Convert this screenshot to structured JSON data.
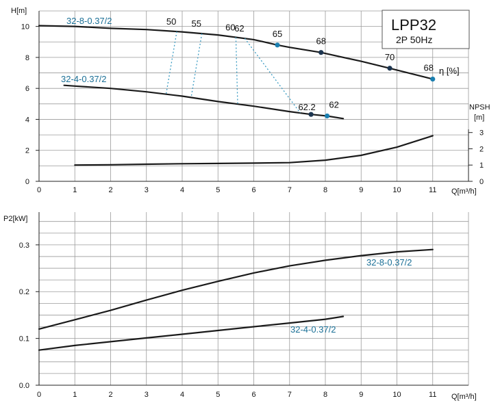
{
  "chart_data": [
    {
      "type": "line",
      "title": "LPP32",
      "subtitle": "2P  50Hz",
      "ylabel": "H[m]",
      "xlabel": "Q[m³/h]",
      "xlim": [
        0,
        12
      ],
      "ylim": [
        0,
        11
      ],
      "x_ticks": [
        "0",
        "1",
        "2",
        "3",
        "4",
        "5",
        "6",
        "7",
        "8",
        "9",
        "10",
        "11"
      ],
      "y_ticks": [
        "0",
        "2",
        "4",
        "6",
        "8",
        "10"
      ],
      "grid": true,
      "series": [
        {
          "name": "32-8-0.37/2",
          "x": [
            0,
            1,
            2,
            3,
            4,
            5,
            6,
            6.66,
            7,
            7.88,
            9,
            9.8,
            11
          ],
          "y": [
            10.05,
            10.0,
            9.88,
            9.8,
            9.65,
            9.45,
            9.15,
            8.8,
            8.65,
            8.32,
            7.75,
            7.3,
            6.6
          ]
        },
        {
          "name": "32-4-0.37/2",
          "x": [
            0.7,
            1,
            2,
            3,
            4,
            5,
            6,
            7,
            7.6,
            8.05,
            8.5
          ],
          "y": [
            6.2,
            6.15,
            6.0,
            5.78,
            5.5,
            5.15,
            4.85,
            4.5,
            4.32,
            4.22,
            4.05
          ]
        }
      ],
      "npsh": {
        "label": "NPSH",
        "unit": "[m]",
        "ticks": [
          "0",
          "1",
          "2",
          "3"
        ],
        "x": [
          1,
          2,
          3,
          4,
          5,
          6,
          7,
          8,
          9,
          10,
          11
        ],
        "y": [
          1.0,
          1.02,
          1.05,
          1.08,
          1.1,
          1.12,
          1.15,
          1.3,
          1.6,
          2.1,
          2.8
        ]
      },
      "efficiency": {
        "label": "η [%]",
        "curve_points": [
          {
            "series": "32-8-0.37/2",
            "x": 6.66,
            "value": "65"
          },
          {
            "series": "32-8-0.37/2",
            "x": 7.88,
            "value": "68"
          },
          {
            "series": "32-8-0.37/2",
            "x": 9.8,
            "value": "70"
          },
          {
            "series": "32-8-0.37/2",
            "x": 11,
            "value": "68"
          },
          {
            "series": "32-4-0.37/2",
            "x": 7.6,
            "value": "62.2"
          },
          {
            "series": "32-4-0.37/2",
            "x": 8.05,
            "value": "62"
          }
        ],
        "iso_lines": [
          {
            "value": "50",
            "top_x": 3.85,
            "bottom_x": 3.55
          },
          {
            "value": "55",
            "top_x": 4.55,
            "bottom_x": 4.25
          },
          {
            "value": "60",
            "top_x": 5.5,
            "bottom_x": 5.55
          },
          {
            "value": "62",
            "top_x": 5.75,
            "bottom_x": 7.3
          }
        ]
      }
    },
    {
      "type": "line",
      "ylabel": "P2[kW]",
      "xlabel": "Q[m³/h]",
      "xlim": [
        0,
        12
      ],
      "ylim": [
        0,
        0.37
      ],
      "x_ticks": [
        "0",
        "1",
        "2",
        "3",
        "4",
        "5",
        "6",
        "7",
        "8",
        "9",
        "10",
        "11"
      ],
      "y_ticks": [
        "0.0",
        "0.1",
        "0.2",
        "0.3"
      ],
      "grid": true,
      "series": [
        {
          "name": "32-8-0.37/2",
          "x": [
            0,
            1,
            2,
            3,
            4,
            5,
            6,
            7,
            8,
            9,
            10,
            11
          ],
          "y": [
            0.12,
            0.14,
            0.16,
            0.182,
            0.203,
            0.222,
            0.24,
            0.255,
            0.267,
            0.277,
            0.285,
            0.29
          ]
        },
        {
          "name": "32-4-0.37/2",
          "x": [
            0,
            1,
            2,
            3,
            4,
            5,
            6,
            7,
            8,
            8.5
          ],
          "y": [
            0.075,
            0.085,
            0.093,
            0.101,
            0.109,
            0.117,
            0.125,
            0.133,
            0.141,
            0.147
          ]
        }
      ]
    }
  ]
}
